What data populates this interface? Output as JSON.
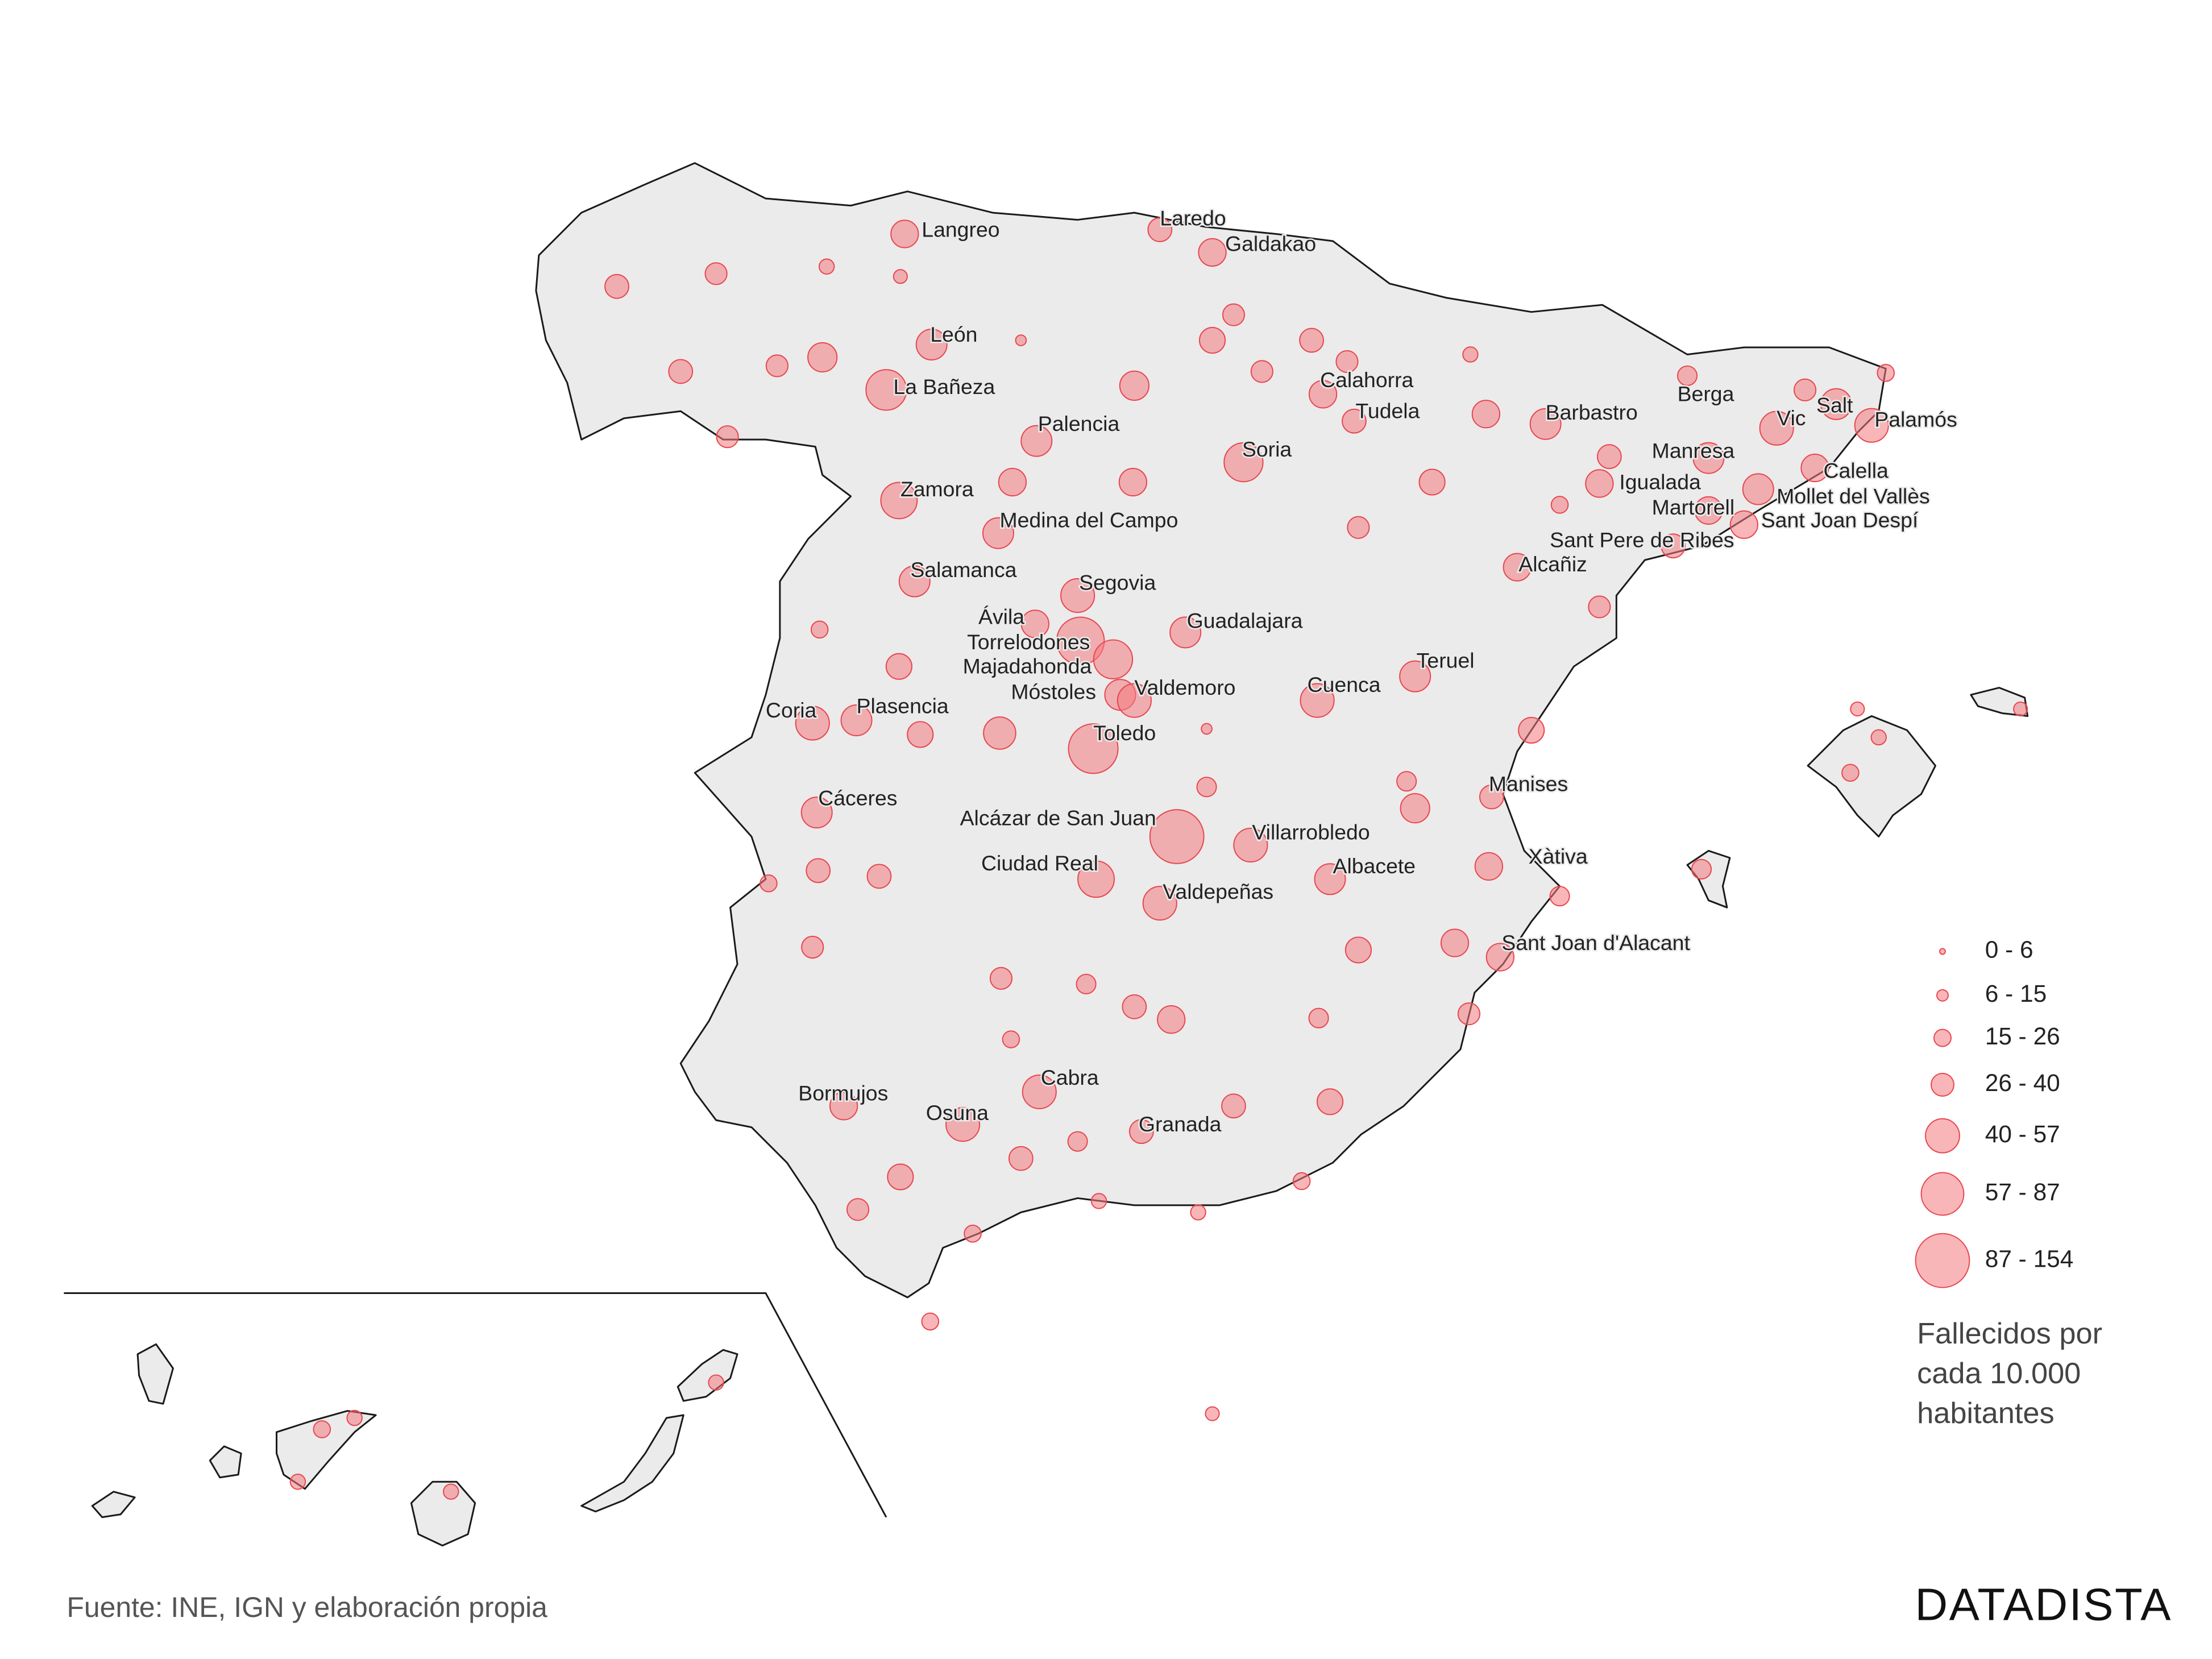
{
  "chart_data": {
    "type": "map",
    "bubble_color": "#f47a80",
    "bubble_stroke": "#e8474f",
    "cities": [
      {
        "name": "Langreo",
        "value": 40
      },
      {
        "name": "Laredo",
        "value": 30
      },
      {
        "name": "Galdakao",
        "value": 40
      },
      {
        "name": "León",
        "value": 50
      },
      {
        "name": "La Bañeza",
        "value": 87
      },
      {
        "name": "Calahorra",
        "value": 40
      },
      {
        "name": "Tudela",
        "value": 30
      },
      {
        "name": "Barbastro",
        "value": 50
      },
      {
        "name": "Berga",
        "value": 20
      },
      {
        "name": "Vic",
        "value": 60
      },
      {
        "name": "Salt",
        "value": 50
      },
      {
        "name": "Palamós",
        "value": 60
      },
      {
        "name": "Palencia",
        "value": 50
      },
      {
        "name": "Soria",
        "value": 80
      },
      {
        "name": "Manresa",
        "value": 50
      },
      {
        "name": "Calella",
        "value": 40
      },
      {
        "name": "Igualada",
        "value": 40
      },
      {
        "name": "Mollet del Vallès",
        "value": 50
      },
      {
        "name": "Martorell",
        "value": 40
      },
      {
        "name": "Sant Joan Despí",
        "value": 40
      },
      {
        "name": "Zamora",
        "value": 70
      },
      {
        "name": "Medina del Campo",
        "value": 50
      },
      {
        "name": "Sant Pere de Ribes",
        "value": 30
      },
      {
        "name": "Alcañiz",
        "value": 40
      },
      {
        "name": "Salamanca",
        "value": 50
      },
      {
        "name": "Segovia",
        "value": 60
      },
      {
        "name": "Ávila",
        "value": 40
      },
      {
        "name": "Guadalajara",
        "value": 50
      },
      {
        "name": "Torrelodones",
        "value": 120
      },
      {
        "name": "Majadahonda",
        "value": 80
      },
      {
        "name": "Teruel",
        "value": 50
      },
      {
        "name": "Móstoles",
        "value": 50
      },
      {
        "name": "Valdemoro",
        "value": 60
      },
      {
        "name": "Cuenca",
        "value": 60
      },
      {
        "name": "Coria",
        "value": 60
      },
      {
        "name": "Plasencia",
        "value": 50
      },
      {
        "name": "Toledo",
        "value": 130
      },
      {
        "name": "Manises",
        "value": 30
      },
      {
        "name": "Cáceres",
        "value": 50
      },
      {
        "name": "Alcázar de San Juan",
        "value": 154
      },
      {
        "name": "Villarrobledo",
        "value": 60
      },
      {
        "name": "Xàtiva",
        "value": 40
      },
      {
        "name": "Ciudad Real",
        "value": 70
      },
      {
        "name": "Albacete",
        "value": 50
      },
      {
        "name": "Valdepeñas",
        "value": 60
      },
      {
        "name": "Sant Joan d'Alacant",
        "value": 40
      },
      {
        "name": "Bormujos",
        "value": 40
      },
      {
        "name": "Cabra",
        "value": 60
      },
      {
        "name": "Osuna",
        "value": 60
      },
      {
        "name": "Granada",
        "value": 30
      }
    ],
    "other_values": [
      30,
      25,
      30,
      25,
      45,
      25,
      12,
      10,
      6,
      45,
      35,
      25,
      30,
      25,
      25,
      12,
      35,
      25,
      40,
      40,
      40,
      15,
      35,
      35,
      55,
      6,
      20,
      20,
      45,
      30,
      15,
      30,
      25,
      25,
      20,
      30,
      40,
      35,
      20,
      35,
      30,
      15,
      20,
      30,
      35,
      25,
      15,
      40,
      25,
      20,
      35,
      25,
      30,
      15,
      25,
      15,
      10,
      15,
      12,
      20,
      10,
      15,
      15,
      12,
      12,
      12,
      12,
      10,
      15,
      12,
      12
    ],
    "legend": {
      "items": [
        "0 - 6",
        "6 - 15",
        "15 - 26",
        "26 - 40",
        "40 - 57",
        "57 - 87",
        "87 - 154"
      ],
      "title": [
        "Fallecidos por",
        "cada 10.000",
        "habitantes"
      ]
    },
    "source": "Fuente: INE, IGN y elaboración propia",
    "brand": "DATADISTA"
  }
}
